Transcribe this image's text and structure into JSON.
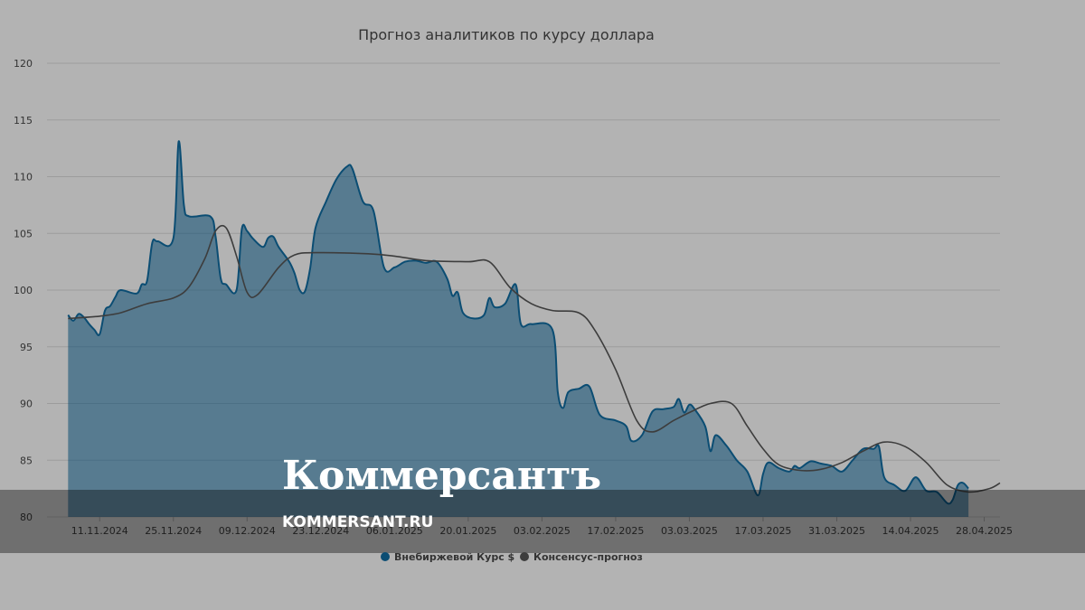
{
  "chart_data": {
    "type": "area",
    "title": "Прогноз аналитиков по курсу доллара",
    "xlabel": "",
    "ylabel": "",
    "ylim": [
      80,
      120
    ],
    "y_ticks": [
      80,
      85,
      90,
      95,
      100,
      105,
      110,
      115,
      120
    ],
    "x_range": [
      "2024-11-01",
      "2025-05-01"
    ],
    "x_ticks": [
      {
        "date": "2024-11-11",
        "label": "11.11.2024"
      },
      {
        "date": "2024-11-25",
        "label": "25.11.2024"
      },
      {
        "date": "2024-12-09",
        "label": "09.12.2024"
      },
      {
        "date": "2024-12-23",
        "label": "23.12.2024"
      },
      {
        "date": "2025-01-06",
        "label": "06.01.2025"
      },
      {
        "date": "2025-01-20",
        "label": "20.01.2025"
      },
      {
        "date": "2025-02-03",
        "label": "03.02.2025"
      },
      {
        "date": "2025-02-17",
        "label": "17.02.2025"
      },
      {
        "date": "2025-03-03",
        "label": "03.03.2025"
      },
      {
        "date": "2025-03-17",
        "label": "17.03.2025"
      },
      {
        "date": "2025-03-31",
        "label": "31.03.2025"
      },
      {
        "date": "2025-04-14",
        "label": "14.04.2025"
      },
      {
        "date": "2025-04-28",
        "label": "28.04.2025"
      }
    ],
    "grid": true,
    "legend_position": "bottom-center",
    "series": [
      {
        "name": "Внебиржевой Курс $",
        "type": "area",
        "color": "#0b4d73",
        "points": [
          [
            "2024-11-05",
            97.8
          ],
          [
            "2024-11-06",
            97.3
          ],
          [
            "2024-11-07",
            97.9
          ],
          [
            "2024-11-08",
            97.6
          ],
          [
            "2024-11-09",
            97.0
          ],
          [
            "2024-11-10",
            96.5
          ],
          [
            "2024-11-11",
            96.1
          ],
          [
            "2024-11-12",
            98.2
          ],
          [
            "2024-11-13",
            98.6
          ],
          [
            "2024-11-14",
            99.4
          ],
          [
            "2024-11-15",
            100.0
          ],
          [
            "2024-11-18",
            99.7
          ],
          [
            "2024-11-19",
            100.5
          ],
          [
            "2024-11-20",
            100.8
          ],
          [
            "2024-11-21",
            104.2
          ],
          [
            "2024-11-22",
            104.3
          ],
          [
            "2024-11-25",
            104.6
          ],
          [
            "2024-11-26",
            113.1
          ],
          [
            "2024-11-27",
            107.5
          ],
          [
            "2024-11-28",
            106.5
          ],
          [
            "2024-12-02",
            106.5
          ],
          [
            "2024-12-03",
            104.8
          ],
          [
            "2024-12-04",
            101.0
          ],
          [
            "2024-12-05",
            100.5
          ],
          [
            "2024-12-07",
            100.0
          ],
          [
            "2024-12-08",
            105.4
          ],
          [
            "2024-12-09",
            105.2
          ],
          [
            "2024-12-10",
            104.6
          ],
          [
            "2024-12-12",
            103.8
          ],
          [
            "2024-12-13",
            104.6
          ],
          [
            "2024-12-14",
            104.7
          ],
          [
            "2024-12-15",
            103.8
          ],
          [
            "2024-12-17",
            102.5
          ],
          [
            "2024-12-18",
            101.5
          ],
          [
            "2024-12-19",
            100.0
          ],
          [
            "2024-12-20",
            99.9
          ],
          [
            "2024-12-21",
            102.0
          ],
          [
            "2024-12-22",
            105.5
          ],
          [
            "2024-12-24",
            107.8
          ],
          [
            "2024-12-26",
            109.8
          ],
          [
            "2024-12-28",
            110.9
          ],
          [
            "2024-12-29",
            110.7
          ],
          [
            "2024-12-31",
            107.8
          ],
          [
            "2025-01-02",
            107.0
          ],
          [
            "2025-01-04",
            102.0
          ],
          [
            "2025-01-06",
            102.0
          ],
          [
            "2025-01-08",
            102.5
          ],
          [
            "2025-01-10",
            102.6
          ],
          [
            "2025-01-12",
            102.4
          ],
          [
            "2025-01-14",
            102.5
          ],
          [
            "2025-01-16",
            101.0
          ],
          [
            "2025-01-17",
            99.5
          ],
          [
            "2025-01-18",
            99.8
          ],
          [
            "2025-01-19",
            98.0
          ],
          [
            "2025-01-21",
            97.5
          ],
          [
            "2025-01-23",
            97.8
          ],
          [
            "2025-01-24",
            99.3
          ],
          [
            "2025-01-25",
            98.5
          ],
          [
            "2025-01-27",
            98.8
          ],
          [
            "2025-01-29",
            100.5
          ],
          [
            "2025-01-30",
            97.0
          ],
          [
            "2025-02-01",
            97.0
          ],
          [
            "2025-02-05",
            96.5
          ],
          [
            "2025-02-06",
            91.0
          ],
          [
            "2025-02-07",
            89.6
          ],
          [
            "2025-02-08",
            91.0
          ],
          [
            "2025-02-10",
            91.3
          ],
          [
            "2025-02-12",
            91.5
          ],
          [
            "2025-02-14",
            89.0
          ],
          [
            "2025-02-17",
            88.5
          ],
          [
            "2025-02-19",
            88.0
          ],
          [
            "2025-02-20",
            86.7
          ],
          [
            "2025-02-22",
            87.2
          ],
          [
            "2025-02-24",
            89.3
          ],
          [
            "2025-02-26",
            89.5
          ],
          [
            "2025-02-28",
            89.7
          ],
          [
            "2025-03-01",
            90.4
          ],
          [
            "2025-03-02",
            89.2
          ],
          [
            "2025-03-03",
            89.9
          ],
          [
            "2025-03-04",
            89.5
          ],
          [
            "2025-03-06",
            88.0
          ],
          [
            "2025-03-07",
            85.8
          ],
          [
            "2025-03-08",
            87.2
          ],
          [
            "2025-03-10",
            86.3
          ],
          [
            "2025-03-12",
            85.0
          ],
          [
            "2025-03-14",
            84.0
          ],
          [
            "2025-03-16",
            81.9
          ],
          [
            "2025-03-17",
            83.8
          ],
          [
            "2025-03-18",
            84.8
          ],
          [
            "2025-03-20",
            84.3
          ],
          [
            "2025-03-22",
            84.0
          ],
          [
            "2025-03-23",
            84.5
          ],
          [
            "2025-03-24",
            84.3
          ],
          [
            "2025-03-26",
            84.9
          ],
          [
            "2025-03-28",
            84.7
          ],
          [
            "2025-03-30",
            84.5
          ],
          [
            "2025-04-01",
            84.0
          ],
          [
            "2025-04-03",
            85.0
          ],
          [
            "2025-04-05",
            86.0
          ],
          [
            "2025-04-07",
            86.0
          ],
          [
            "2025-04-08",
            86.2
          ],
          [
            "2025-04-09",
            83.5
          ],
          [
            "2025-04-11",
            82.8
          ],
          [
            "2025-04-13",
            82.3
          ],
          [
            "2025-04-15",
            83.5
          ],
          [
            "2025-04-17",
            82.3
          ],
          [
            "2025-04-19",
            82.2
          ],
          [
            "2025-04-21",
            81.2
          ],
          [
            "2025-04-22",
            81.5
          ],
          [
            "2025-04-23",
            82.8
          ],
          [
            "2025-04-24",
            83.0
          ],
          [
            "2025-04-25",
            82.5
          ]
        ]
      },
      {
        "name": "Консенсус-прогноз",
        "type": "line",
        "color": "#3d3d3d",
        "points": [
          [
            "2024-11-05",
            97.5
          ],
          [
            "2024-11-11",
            97.7
          ],
          [
            "2024-11-15",
            98.0
          ],
          [
            "2024-11-20",
            98.8
          ],
          [
            "2024-11-25",
            99.3
          ],
          [
            "2024-11-28",
            100.3
          ],
          [
            "2024-12-01",
            102.8
          ],
          [
            "2024-12-03",
            105.2
          ],
          [
            "2024-12-05",
            105.5
          ],
          [
            "2024-12-07",
            103.0
          ],
          [
            "2024-12-09",
            99.8
          ],
          [
            "2024-12-11",
            99.6
          ],
          [
            "2024-12-15",
            102.0
          ],
          [
            "2024-12-18",
            103.1
          ],
          [
            "2024-12-22",
            103.3
          ],
          [
            "2025-01-01",
            103.2
          ],
          [
            "2025-01-06",
            103.0
          ],
          [
            "2025-01-12",
            102.6
          ],
          [
            "2025-01-20",
            102.5
          ],
          [
            "2025-01-24",
            102.5
          ],
          [
            "2025-01-28",
            100.2
          ],
          [
            "2025-02-01",
            98.8
          ],
          [
            "2025-02-05",
            98.2
          ],
          [
            "2025-02-10",
            98.0
          ],
          [
            "2025-02-13",
            96.5
          ],
          [
            "2025-02-17",
            93.0
          ],
          [
            "2025-02-21",
            88.5
          ],
          [
            "2025-02-24",
            87.5
          ],
          [
            "2025-02-28",
            88.5
          ],
          [
            "2025-03-03",
            89.2
          ],
          [
            "2025-03-07",
            90.0
          ],
          [
            "2025-03-11",
            90.0
          ],
          [
            "2025-03-14",
            88.0
          ],
          [
            "2025-03-17",
            86.0
          ],
          [
            "2025-03-20",
            84.6
          ],
          [
            "2025-03-24",
            84.1
          ],
          [
            "2025-03-28",
            84.2
          ],
          [
            "2025-04-01",
            84.8
          ],
          [
            "2025-04-05",
            85.8
          ],
          [
            "2025-04-09",
            86.6
          ],
          [
            "2025-04-13",
            86.2
          ],
          [
            "2025-04-17",
            84.8
          ],
          [
            "2025-04-21",
            82.8
          ],
          [
            "2025-04-25",
            82.2
          ],
          [
            "2025-04-29",
            82.5
          ],
          [
            "2025-05-01",
            83.0
          ]
        ]
      }
    ]
  },
  "watermark": {
    "brand": "Коммерсантъ",
    "site": "KOMMERSANT.RU"
  }
}
